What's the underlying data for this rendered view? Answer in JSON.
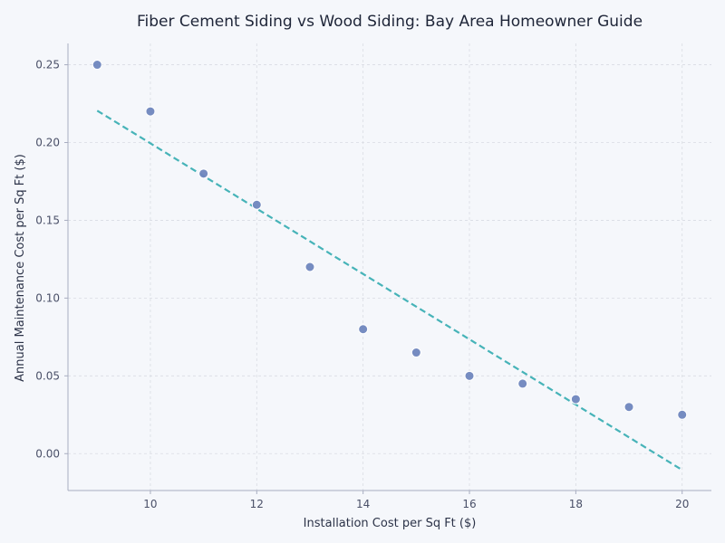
{
  "chart_data": {
    "type": "scatter",
    "title": "Fiber Cement Siding vs Wood Siding: Bay Area Homeowner Guide",
    "xlabel": "Installation Cost per Sq Ft ($)",
    "ylabel": "Annual Maintenance Cost per Sq Ft ($)",
    "xlim": [
      8.45,
      20.55
    ],
    "ylim": [
      -0.0237,
      0.2637
    ],
    "x_ticks": [
      "10",
      "12",
      "14",
      "16",
      "18",
      "20"
    ],
    "y_ticks": [
      "0.00",
      "0.05",
      "0.10",
      "0.15",
      "0.20",
      "0.25"
    ],
    "grid": true,
    "points": {
      "x": [
        9,
        10,
        11,
        12,
        13,
        14,
        15,
        16,
        17,
        18,
        19,
        20
      ],
      "y": [
        0.25,
        0.22,
        0.18,
        0.16,
        0.12,
        0.08,
        0.065,
        0.05,
        0.045,
        0.035,
        0.03,
        0.025
      ]
    },
    "trendline": {
      "x": [
        9,
        20
      ],
      "y": [
        0.2205,
        -0.0105
      ],
      "style": "dashed"
    },
    "colors": {
      "points": "#6f86be",
      "trendline": "#46b3b8",
      "grid": "#d9dce3",
      "axis": "#a8adc0"
    }
  }
}
